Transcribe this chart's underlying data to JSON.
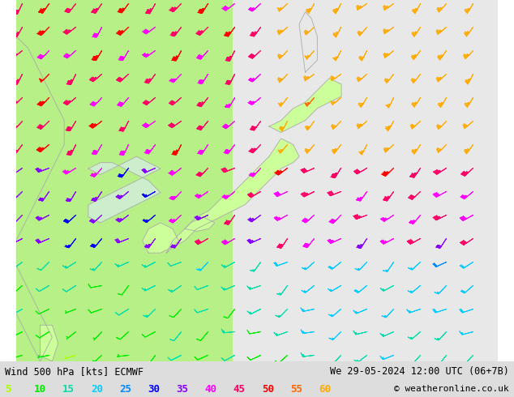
{
  "title_left": "Wind 500 hPa [kts] ECMWF",
  "title_right": "We 29-05-2024 12:00 UTC (06+7B)",
  "copyright": "© weatheronline.co.uk",
  "legend_values": [
    5,
    10,
    15,
    20,
    25,
    30,
    35,
    40,
    45,
    50,
    55,
    60
  ],
  "legend_colors": [
    "#aaff00",
    "#00ee00",
    "#00ddaa",
    "#00ccff",
    "#0088ff",
    "#0000ff",
    "#8800ff",
    "#ff00ff",
    "#ff0066",
    "#ff0000",
    "#ff6600",
    "#ffaa00"
  ],
  "bg_color_land_left": "#aaff88",
  "bg_color_land_right": "#dddddd",
  "bg_color_sea": "#f0f0f0",
  "map_line_color": "#aaaaaa",
  "bottom_bar_color": "#dddddd",
  "figsize": [
    6.34,
    4.9
  ],
  "dpi": 100,
  "lon_min": 118,
  "lon_max": 158,
  "lat_min": 22,
  "lat_max": 52
}
